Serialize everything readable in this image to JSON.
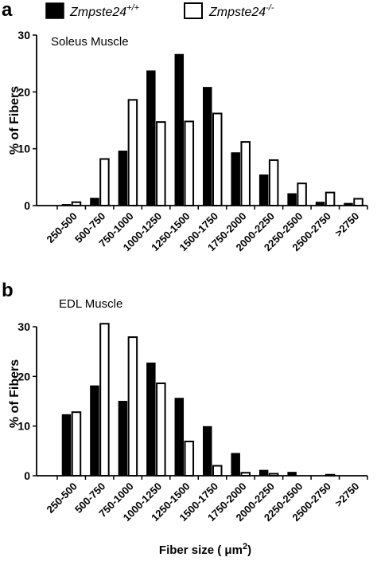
{
  "legend": {
    "wt_label": "Zmpste24",
    "wt_sup": "+/+",
    "ko_label": "Zmpste24",
    "ko_sup": "-/-"
  },
  "xlabel": {
    "main": "Fiber size ( μm",
    "sup": "2",
    "close": ")"
  },
  "chart_data": [
    {
      "type": "bar",
      "panel": "a",
      "title": "Soleus  Muscle",
      "ylabel": "% of Fibers",
      "xlabel": "",
      "ylim": [
        0,
        30
      ],
      "yticks": [
        "0",
        "10",
        "20",
        "30"
      ],
      "categories": [
        "250-500",
        "500-750",
        "750-1000",
        "1000-1250",
        "1250-1500",
        "1500-1750",
        "1750-2000",
        "2000-2250",
        "2250-2500",
        "2500-2750",
        ">2750"
      ],
      "series": [
        {
          "name": "Zmpste24+/+",
          "color": "#000000",
          "values": [
            0.2,
            1.3,
            9.6,
            23.7,
            26.6,
            20.8,
            9.3,
            5.4,
            2.1,
            0.6,
            0.4
          ]
        },
        {
          "name": "Zmpste24-/-",
          "color": "#ffffff",
          "values": [
            0.6,
            8.2,
            18.6,
            14.7,
            14.8,
            16.2,
            11.2,
            8.0,
            3.9,
            2.3,
            1.2
          ]
        }
      ]
    },
    {
      "type": "bar",
      "panel": "b",
      "title": "EDL  Muscle",
      "ylabel": "% of Fibers",
      "xlabel": "Fiber size ( μm2)",
      "ylim": [
        0,
        30
      ],
      "yticks": [
        "0",
        "10",
        "20",
        "30"
      ],
      "categories": [
        "250-500",
        "500-750",
        "750-1000",
        "1000-1250",
        "1250-1500",
        "1500-1750",
        "1750-2000",
        "2000-2250",
        "2250-2500",
        "2500-2750",
        ">2750"
      ],
      "series": [
        {
          "name": "Zmpste24+/+",
          "color": "#000000",
          "values": [
            12.3,
            18.1,
            15.0,
            22.7,
            15.6,
            9.9,
            4.5,
            1.1,
            0.7,
            0.0,
            0.0
          ]
        },
        {
          "name": "Zmpste24-/-",
          "color": "#ffffff",
          "values": [
            12.8,
            30.6,
            27.9,
            18.6,
            6.9,
            2.0,
            0.6,
            0.4,
            0.0,
            0.2,
            0.0
          ]
        }
      ]
    }
  ]
}
